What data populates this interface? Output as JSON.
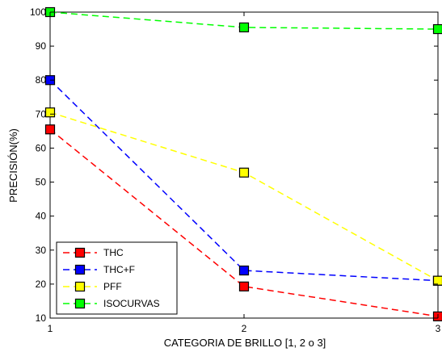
{
  "chart_data": {
    "type": "line",
    "title": "",
    "xlabel": "CATEGORIA DE BRILLO [1, 2 o 3]",
    "ylabel": "PRECISIÓN(%)",
    "x": [
      1,
      2,
      3
    ],
    "xlim": [
      1,
      3
    ],
    "ylim": [
      10,
      100
    ],
    "xticks": [
      "1",
      "2",
      "3"
    ],
    "yticks": [
      "10",
      "20",
      "30",
      "40",
      "50",
      "60",
      "70",
      "80",
      "90",
      "100"
    ],
    "grid": false,
    "legend_position": "bottom-left",
    "series": [
      {
        "name": "THC",
        "color": "#ff0000",
        "values": [
          65.5,
          19.3,
          10.5
        ]
      },
      {
        "name": "THC+F",
        "color": "#0000ff",
        "values": [
          80,
          24,
          21
        ]
      },
      {
        "name": "PFF",
        "color": "#ffff00",
        "values": [
          70.5,
          52.8,
          21
        ]
      },
      {
        "name": "ISOCURVAS",
        "color": "#00ff00",
        "values": [
          100,
          95.5,
          95
        ]
      }
    ]
  }
}
